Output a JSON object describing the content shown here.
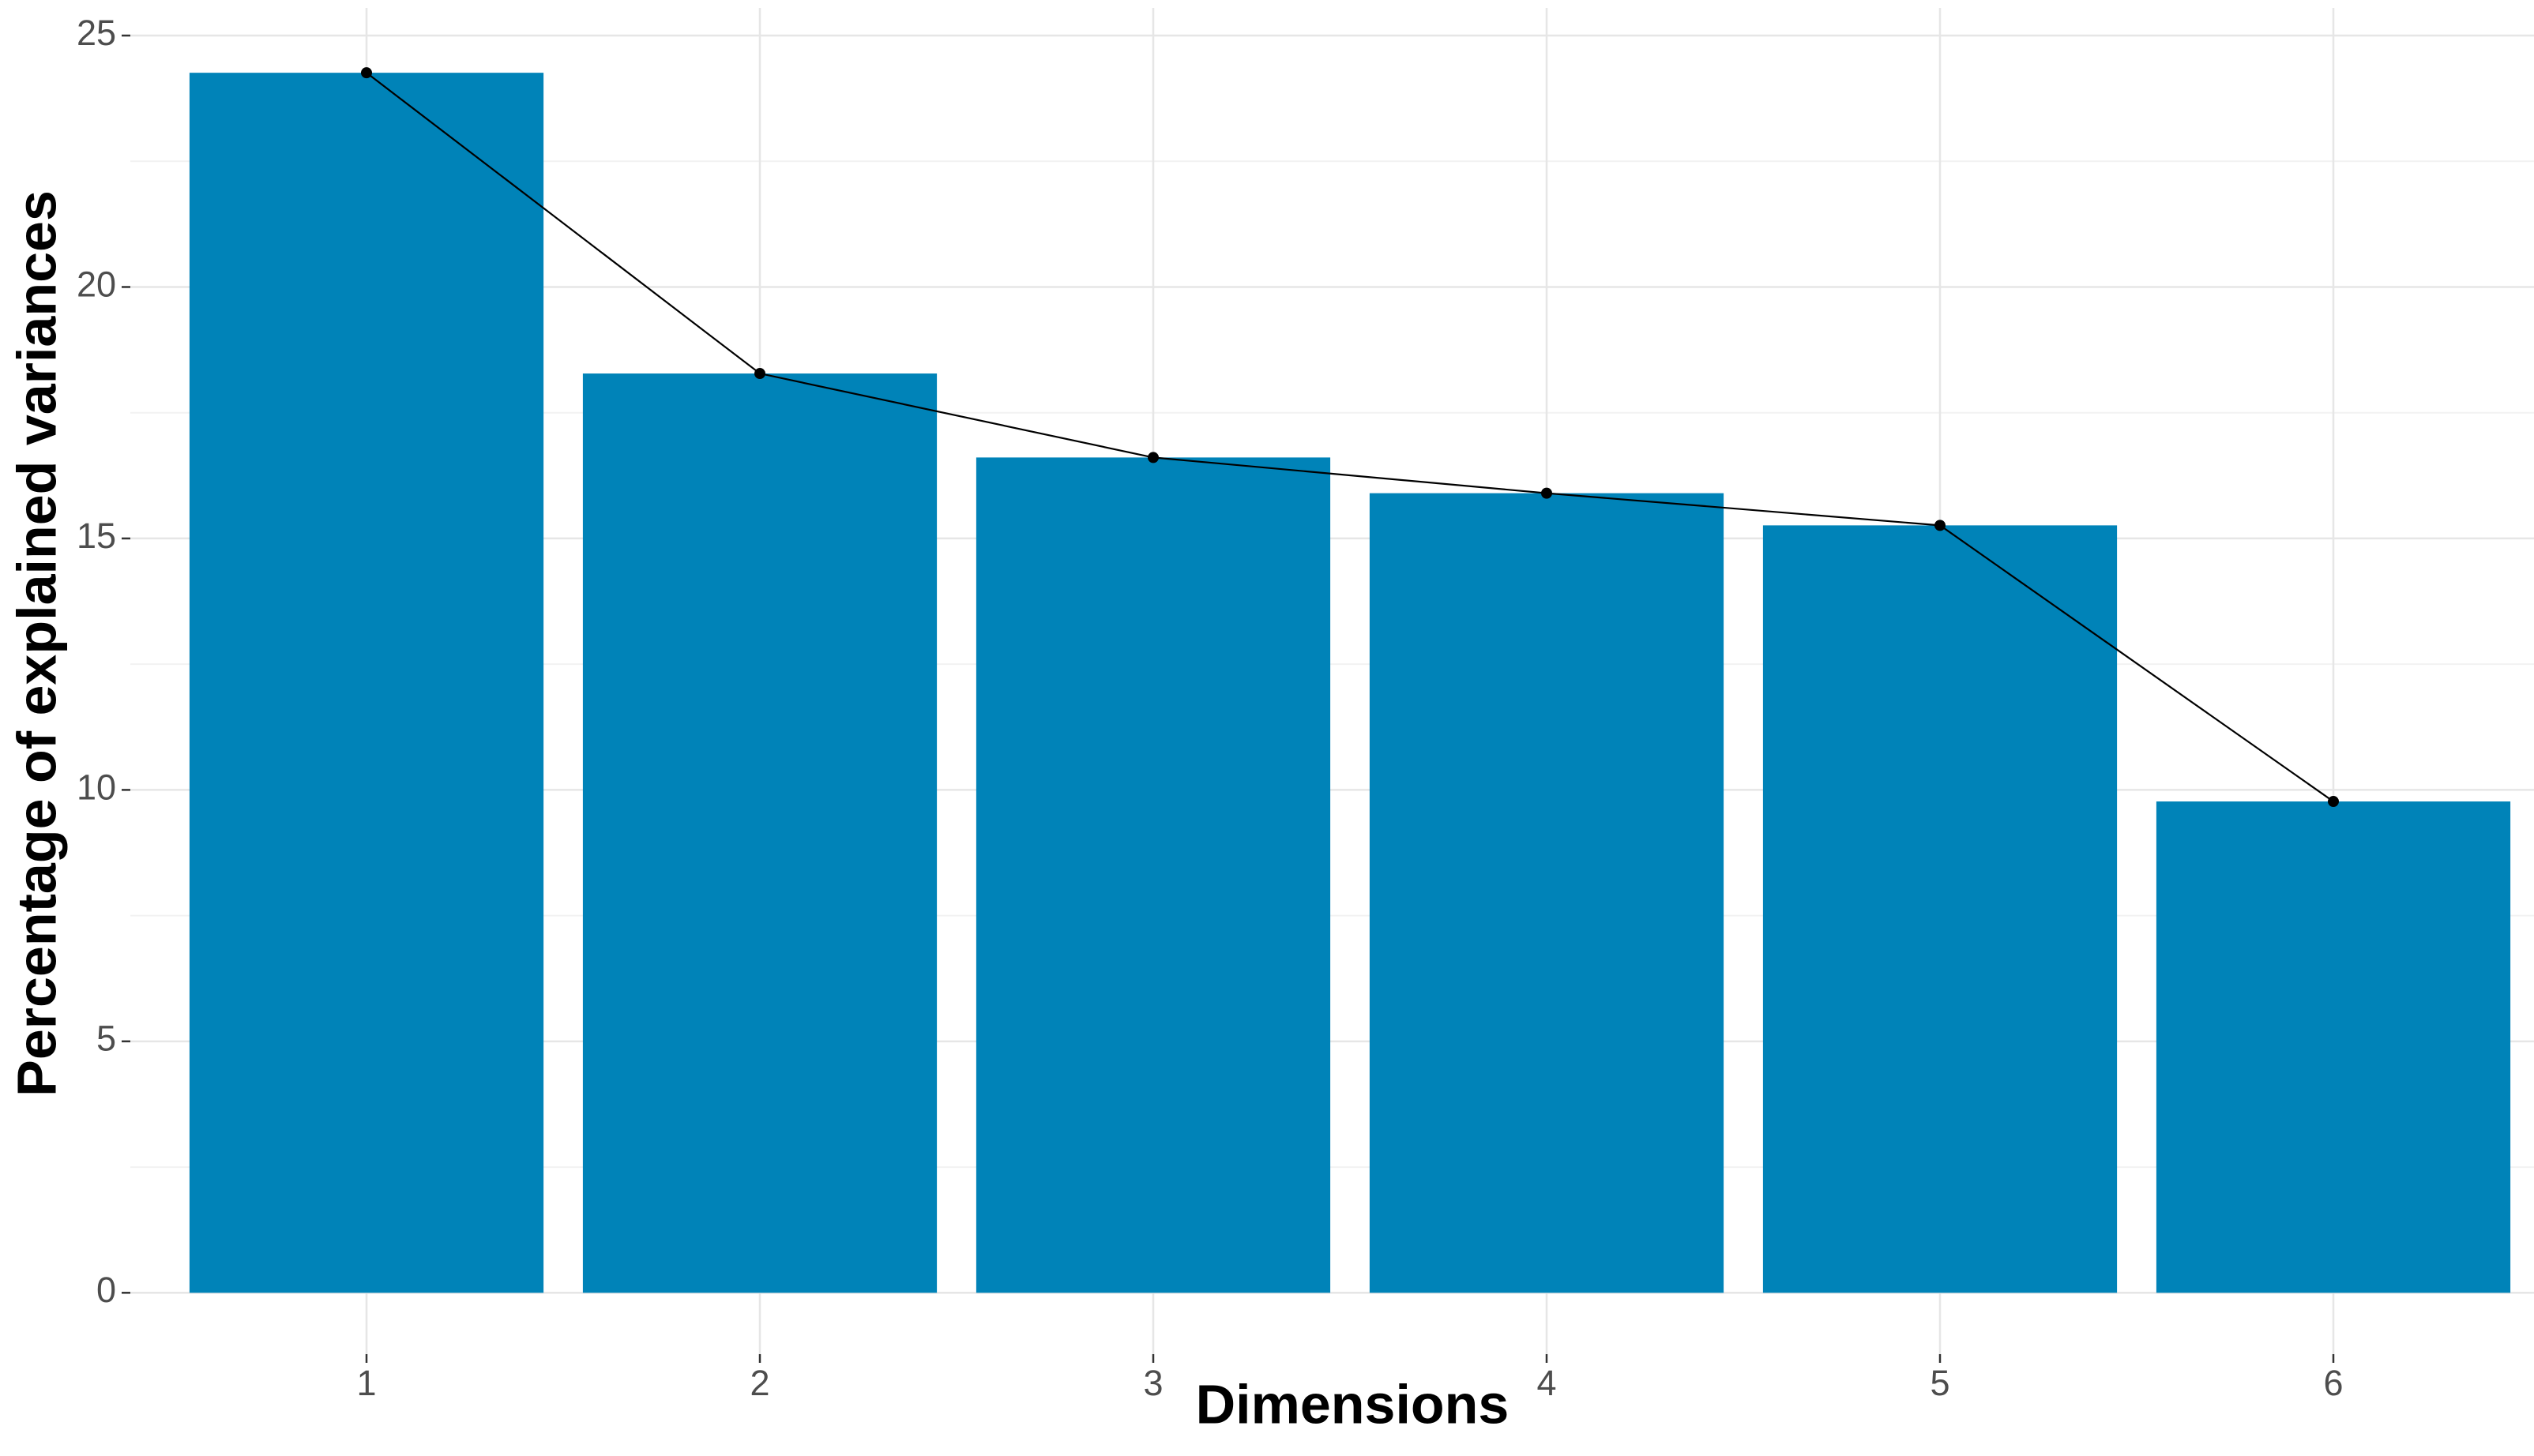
{
  "chart_data": {
    "type": "bar",
    "xlabel": "Dimensions",
    "ylabel": "Percentage of explained variances",
    "categories": [
      "1",
      "2",
      "3",
      "4",
      "5",
      "6"
    ],
    "values": [
      24.26,
      18.28,
      16.61,
      15.9,
      15.26,
      9.77
    ],
    "color": "#0083b8",
    "line": true,
    "line_color": "#000000",
    "ylim": [
      -1.22,
      25.55
    ],
    "yticks": [
      0,
      5,
      10,
      15,
      20,
      25
    ],
    "grid": true
  }
}
